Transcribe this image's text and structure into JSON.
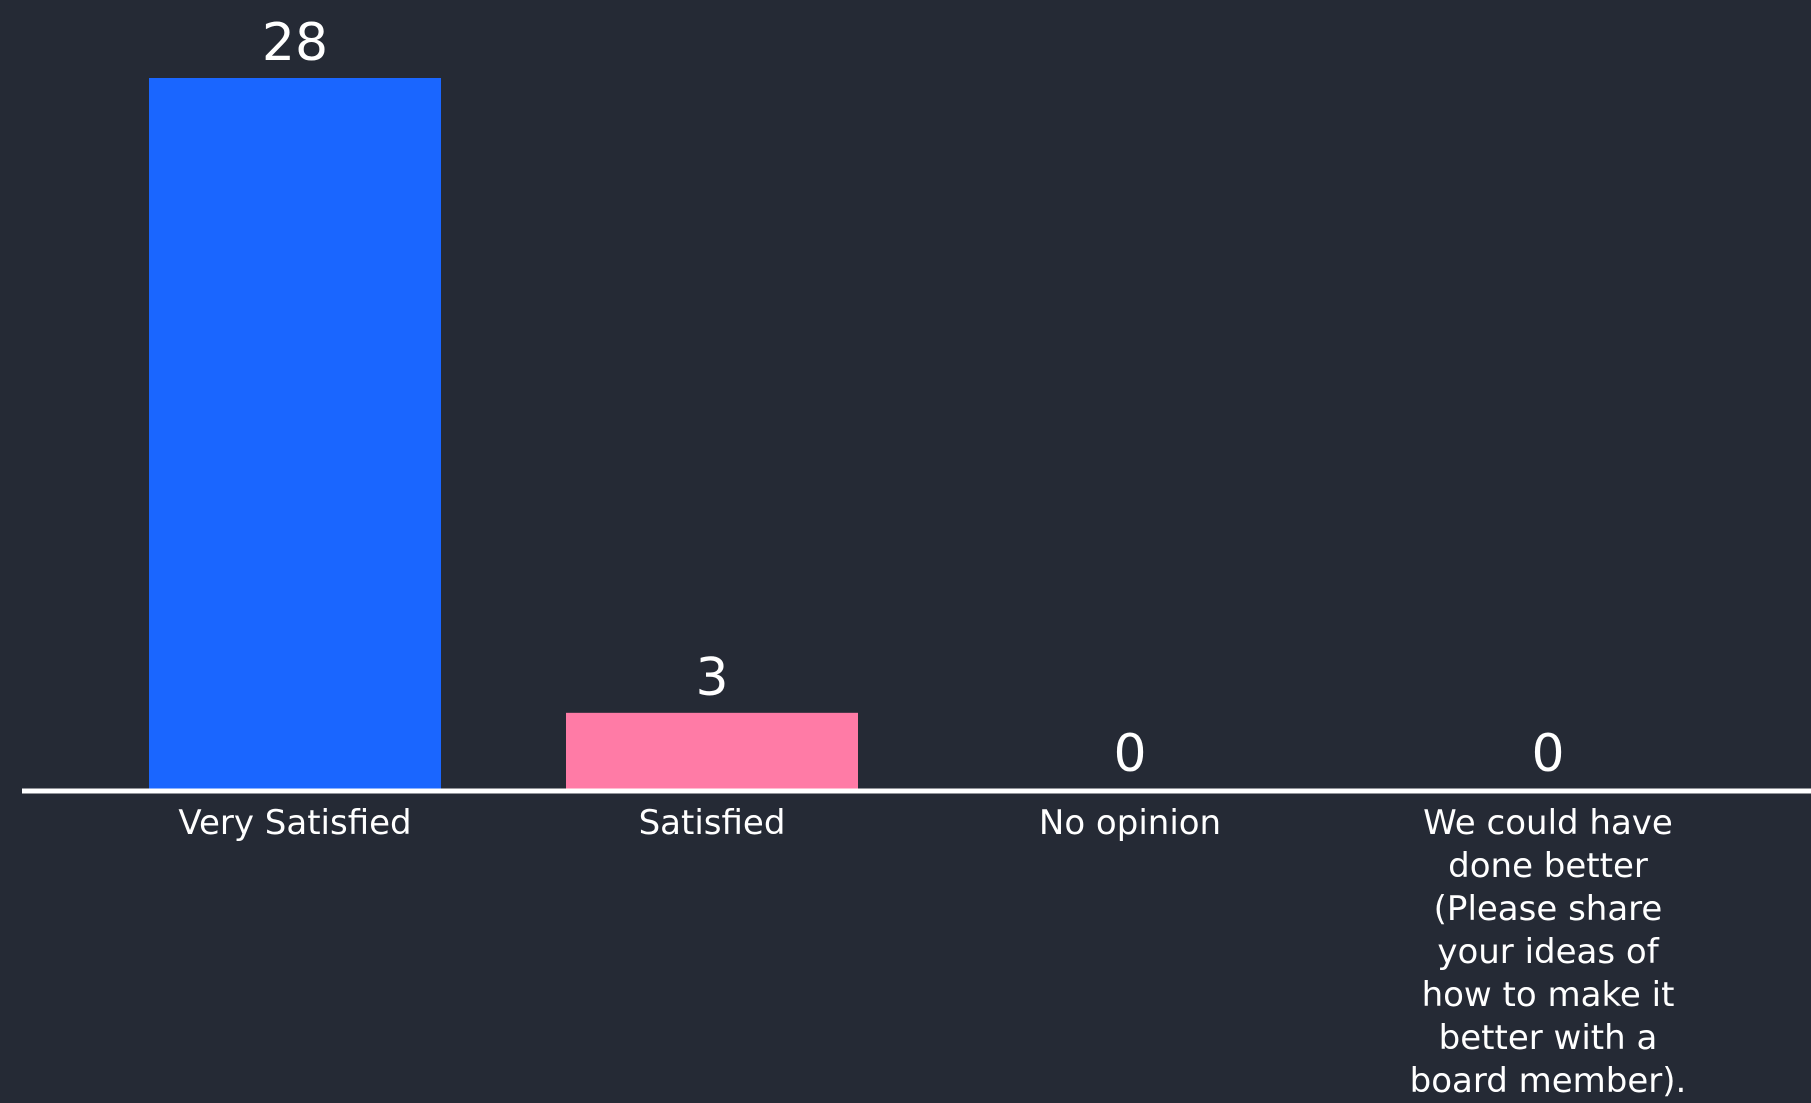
{
  "chart_data": {
    "type": "bar",
    "categories": [
      "Very Satisfied",
      "Satisfied",
      "No opinion",
      "We could have done better (Please share your ideas of how to make it better with a board member)."
    ],
    "category_lines": [
      [
        "Very Satisfied"
      ],
      [
        "Satisfied"
      ],
      [
        "No opinion"
      ],
      [
        "We could have",
        "done better",
        "(Please share",
        "your ideas of",
        "how to make it",
        "better with a",
        "board member)."
      ]
    ],
    "values": [
      28,
      3,
      0,
      0
    ],
    "value_labels": [
      "28",
      "3",
      "0",
      "0"
    ],
    "colors": [
      "#1a66ff",
      "#ff7ba6",
      "#2dc6a8",
      "#ffc21a"
    ],
    "ylim": [
      0,
      28
    ],
    "grid": false,
    "legend": "none",
    "title": "",
    "xlabel": "",
    "ylabel": ""
  },
  "theme": {
    "background": "#252a35",
    "text_color": "#ffffff",
    "axis_color": "#ffffff"
  }
}
